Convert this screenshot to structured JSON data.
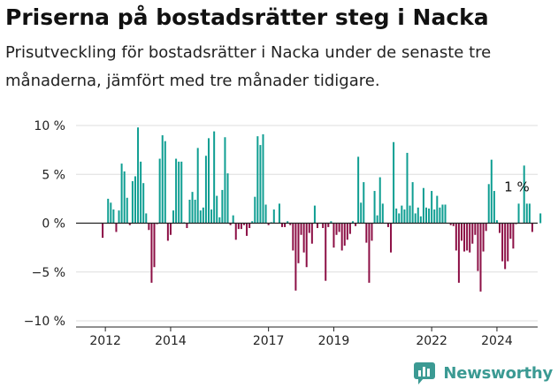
{
  "title": "Priserna på bostadsrätter steg i Nacka",
  "subtitle": "Prisutveckling för bostadsrätter i Nacka under de senaste tre månaderna, jämfört med tre månader tidigare.",
  "brand": {
    "name": "Newsworthy",
    "icon": "newsworthy-logo-icon",
    "color": "#3b9a93"
  },
  "colors": {
    "positive": "#0f9e92",
    "negative": "#8c0f45",
    "axis": "#222222",
    "grid": "#dddddd"
  },
  "chart_data": {
    "type": "bar",
    "x_start": "2011-11",
    "x_end": "2024-08",
    "ylim": [
      -10,
      10
    ],
    "yticks": [
      10,
      5,
      0,
      -5,
      -10
    ],
    "ytick_labels": [
      "10 %",
      "5 %",
      "0 %",
      "−5 %",
      "−10 %"
    ],
    "xticks": [
      "2012",
      "2014",
      "2017",
      "2019",
      "2022",
      "2024"
    ],
    "grid": true,
    "annotation": {
      "text": "1 %",
      "month": "2024-08",
      "value": 1
    },
    "values": [
      0,
      -1.5,
      0,
      2.5,
      2.1,
      1.4,
      -0.9,
      1.3,
      6.1,
      5.3,
      2.6,
      -0.2,
      4.3,
      4.8,
      9.8,
      6.3,
      4.1,
      1.0,
      -0.7,
      -6.1,
      -4.5,
      -0.1,
      6.6,
      9.0,
      8.4,
      -1.8,
      -1.2,
      1.3,
      6.6,
      6.3,
      6.3,
      0.1,
      -0.5,
      2.4,
      3.2,
      2.4,
      7.7,
      1.3,
      1.6,
      6.9,
      8.7,
      1.4,
      9.4,
      2.8,
      0.6,
      3.4,
      8.8,
      5.1,
      -0.2,
      0.8,
      -1.7,
      -0.6,
      -0.6,
      -0.2,
      -1.3,
      -0.5,
      0.2,
      2.7,
      8.9,
      8.0,
      9.1,
      1.9,
      -0.2,
      0.1,
      1.4,
      0.0,
      2.0,
      -0.4,
      -0.4,
      0.2,
      -0.2,
      -2.8,
      -6.9,
      -4.1,
      -1.2,
      -3.0,
      -4.5,
      -1.0,
      -2.1,
      1.8,
      -0.5,
      0.0,
      -0.5,
      -5.9,
      -0.4,
      0.2,
      -2.5,
      -1.2,
      -0.9,
      -2.8,
      -2.3,
      -1.7,
      -1.1,
      0.2,
      -0.3,
      6.8,
      2.1,
      4.2,
      -2.0,
      -6.1,
      -1.8,
      3.3,
      0.8,
      4.7,
      2.0,
      0.0,
      -0.4,
      -3.0,
      8.3,
      1.5,
      1.0,
      1.8,
      1.4,
      7.2,
      1.8,
      4.2,
      1.0,
      1.6,
      0.7,
      3.6,
      1.6,
      1.5,
      3.3,
      1.4,
      2.8,
      1.6,
      1.9,
      1.9,
      0.0,
      -0.2,
      -0.3,
      -2.8,
      -6.1,
      -1.8,
      -2.9,
      -2.8,
      -3.0,
      -2.1,
      -1.2,
      -4.9,
      -7.0,
      -2.9,
      -0.8,
      4.0,
      6.5,
      3.3,
      0.3,
      -1.0,
      -3.9,
      -4.7,
      -3.9,
      -1.6,
      -2.6,
      -0.1,
      2.0,
      0.0,
      5.9,
      2.0,
      2.0,
      -0.9,
      0.0,
      0.0,
      1.0
    ]
  }
}
